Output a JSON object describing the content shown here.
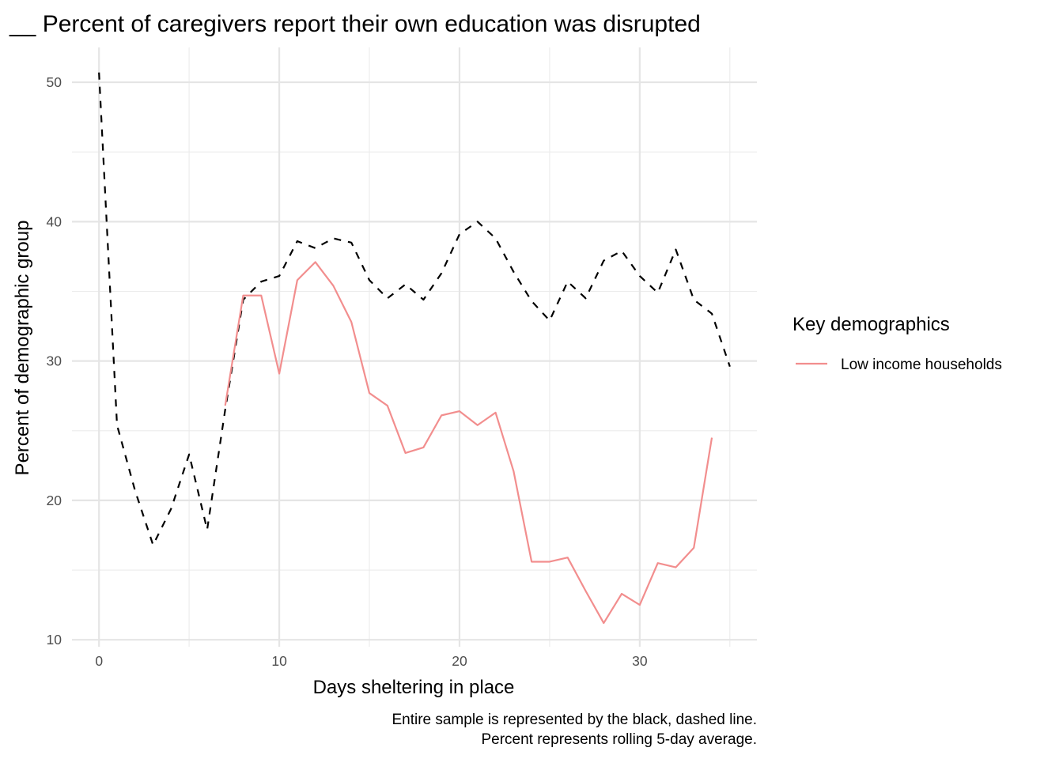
{
  "chart_data": {
    "type": "line",
    "title": "__ Percent of caregivers report their own education was disrupted",
    "xlabel": "Days sheltering in place",
    "ylabel": "Percent of demographic group",
    "xlim": [
      -1.5,
      36.5
    ],
    "ylim": [
      9.5,
      52.5
    ],
    "x_ticks": [
      0,
      10,
      20,
      30
    ],
    "y_ticks": [
      10,
      20,
      30,
      40,
      50
    ],
    "grid": true,
    "legend": {
      "title": "Key demographics",
      "placement": "right",
      "entries": [
        "Low income households"
      ]
    },
    "caption": [
      "Entire sample is represented by the black, dashed line.",
      "Percent represents rolling 5-day average."
    ],
    "series": [
      {
        "color": "#000000",
        "dash": "dashed",
        "x": [
          0,
          1,
          2,
          3,
          4,
          5,
          6,
          7,
          8,
          9,
          10,
          11,
          12,
          13,
          14,
          15,
          16,
          17,
          18,
          19,
          20,
          21,
          22,
          23,
          24,
          25,
          26,
          27,
          28,
          29,
          30,
          31,
          32,
          33,
          34,
          35
        ],
        "values": [
          50.7,
          25.4,
          20.7,
          16.8,
          19.4,
          23.3,
          17.9,
          26.5,
          34.4,
          35.7,
          36.1,
          38.6,
          38.1,
          38.8,
          38.5,
          35.8,
          34.5,
          35.5,
          34.4,
          36.3,
          39.1,
          40.0,
          38.8,
          36.4,
          34.3,
          32.9,
          35.7,
          34.5,
          37.2,
          37.9,
          36.1,
          34.9,
          38.0,
          34.4,
          33.4,
          29.6
        ]
      },
      {
        "name": "Low income households",
        "color": "#f28e8e",
        "dash": "solid",
        "x": [
          7,
          8,
          9,
          10,
          11,
          12,
          13,
          14,
          15,
          16,
          17,
          18,
          19,
          20,
          21,
          22,
          23,
          24,
          25,
          26,
          27,
          28,
          29,
          30,
          31,
          32,
          33,
          34
        ],
        "values": [
          26.8,
          34.7,
          34.7,
          29.1,
          35.8,
          37.1,
          35.4,
          32.8,
          27.7,
          26.8,
          23.4,
          23.8,
          26.1,
          26.4,
          25.4,
          26.3,
          22.1,
          15.6,
          15.6,
          15.9,
          13.5,
          11.2,
          13.3,
          12.5,
          15.5,
          15.2,
          16.6,
          24.5
        ]
      }
    ]
  }
}
